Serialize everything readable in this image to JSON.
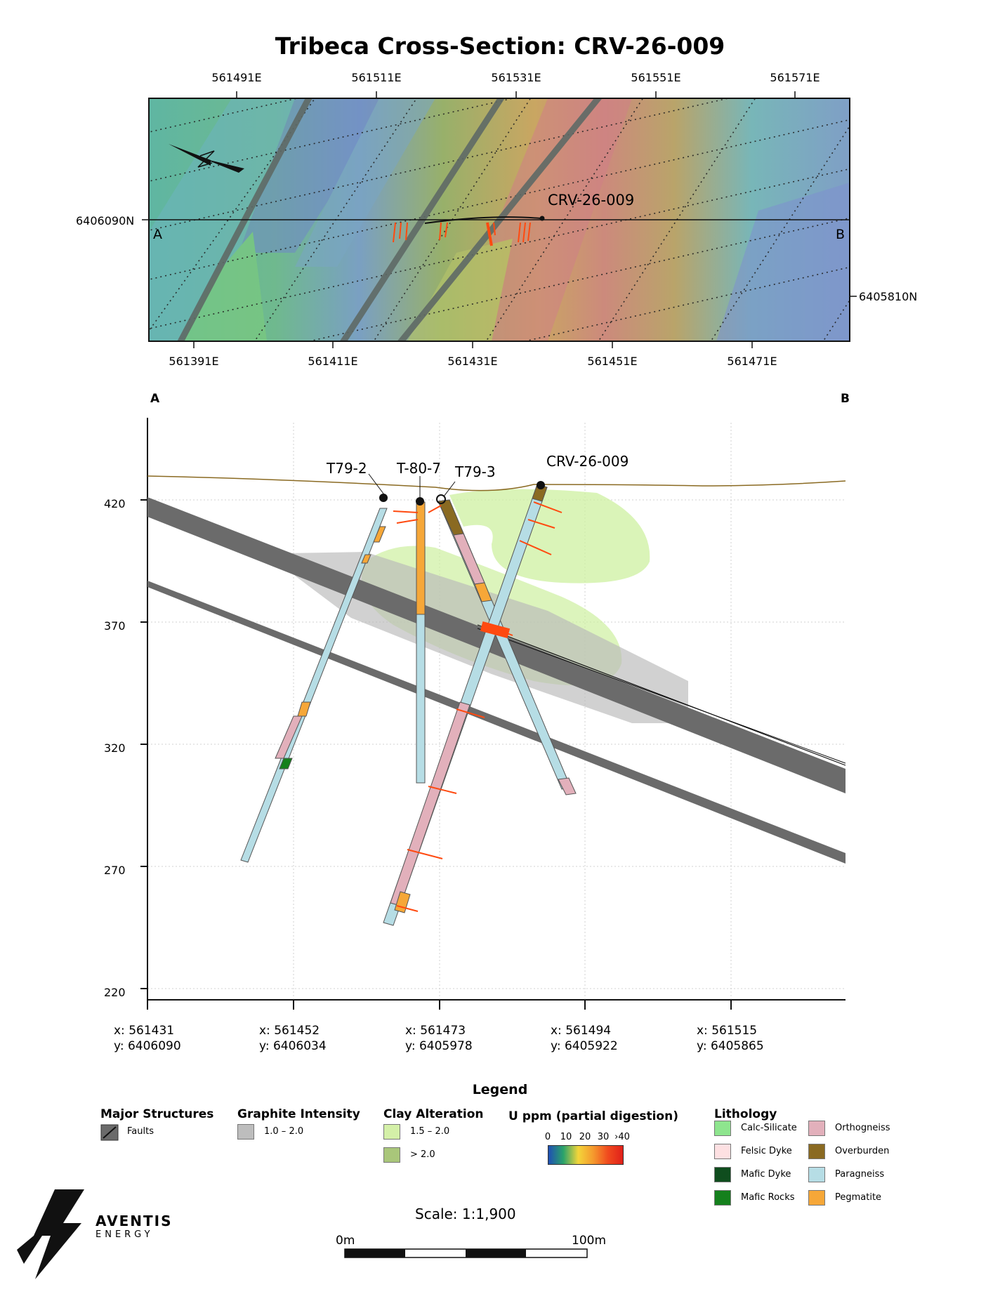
{
  "title": "Tribeca Cross-Section: CRV-26-009",
  "plan_map": {
    "top_eastings": [
      "561491E",
      "561511E",
      "561531E",
      "561551E",
      "561571E"
    ],
    "bottom_eastings": [
      "561391E",
      "561411E",
      "561431E",
      "561451E",
      "561471E"
    ],
    "left_northing": "6406090N",
    "right_northing": "6405810N",
    "hole_label": "CRV-26-009",
    "point_a": "A",
    "point_b": "B"
  },
  "section": {
    "label_a": "A",
    "label_b": "B",
    "elevation_ticks": [
      "420",
      "370",
      "320",
      "270",
      "220"
    ],
    "hole_labels": [
      "T79-2",
      "T-80-7",
      "T79-3",
      "CRV-26-009"
    ],
    "coords": [
      {
        "x": "x: 561431",
        "y": "y: 6406090"
      },
      {
        "x": "x: 561452",
        "y": "y: 6406034"
      },
      {
        "x": "x: 561473",
        "y": "y: 6405978"
      },
      {
        "x": "x: 561494",
        "y": "y: 6405922"
      },
      {
        "x": "x: 561515",
        "y": "y: 6405865"
      }
    ]
  },
  "legend": {
    "title": "Legend",
    "structures": {
      "heading": "Major Structures",
      "item": "Faults"
    },
    "graphite": {
      "heading": "Graphite Intensity",
      "item": "1.0 – 2.0",
      "color": "#bdbdbd"
    },
    "clay": {
      "heading": "Clay Alteration",
      "items": [
        {
          "label": "1.5 – 2.0",
          "color": "#d4f0a8"
        },
        {
          "label": "> 2.0",
          "color": "#a9c67a"
        }
      ]
    },
    "uranium": {
      "heading": "U ppm (partial digestion)",
      "ticks": [
        "0",
        "10",
        "20",
        "30",
        "›40"
      ]
    },
    "lithology": {
      "heading": "Lithology",
      "items": [
        {
          "label": "Calc-Silicate",
          "color": "#8ee58e"
        },
        {
          "label": "Orthogneiss",
          "color": "#e2b0bb"
        },
        {
          "label": "Felsic Dyke",
          "color": "#fde0e2"
        },
        {
          "label": "Overburden",
          "color": "#8a6a22"
        },
        {
          "label": "Mafic Dyke",
          "color": "#0f4d1e"
        },
        {
          "label": "Paragneiss",
          "color": "#b6dde5"
        },
        {
          "label": "Mafic Rocks",
          "color": "#14801c"
        },
        {
          "label": "Pegmatite",
          "color": "#f6a738"
        }
      ]
    }
  },
  "scale": {
    "title": "Scale: 1:1,900",
    "left": "0m",
    "right": "100m"
  },
  "logo": {
    "line1": "AVENTIS",
    "line2": "ENERGY"
  }
}
